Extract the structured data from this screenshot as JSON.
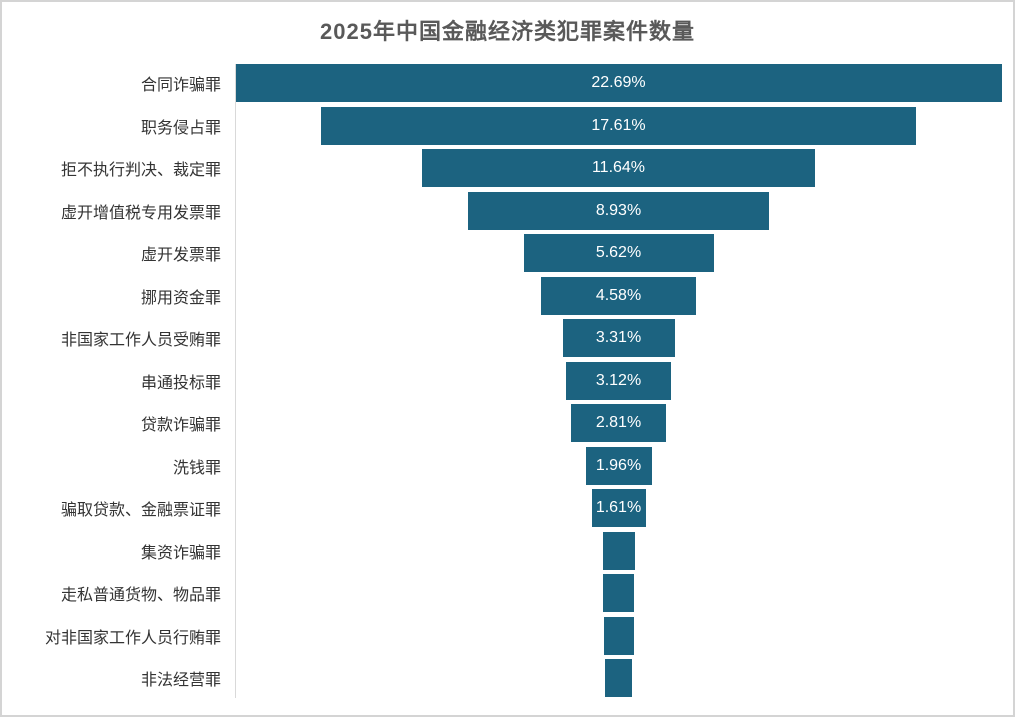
{
  "title": "2025年中国金融经济类犯罪案件数量",
  "colors": {
    "bar": "#1c6380",
    "title_text": "#595959",
    "label_text": "#333333",
    "axis_line": "#d9d9d9",
    "value_text": "#ffffff",
    "frame_border": "#d4d4d4"
  },
  "chart_data": {
    "type": "bar",
    "variant": "horizontal-centered-funnel",
    "title": "2025年中国金融经济类犯罪案件数量",
    "unit": "%",
    "legend": "none",
    "grid": "off",
    "xlim": [
      0,
      22.69
    ],
    "categories": [
      "合同诈骗罪",
      "职务侵占罪",
      "拒不执行判决、裁定罪",
      "虚开增值税专用发票罪",
      "虚开发票罪",
      "挪用资金罪",
      "非国家工作人员受贿罪",
      "串通投标罪",
      "贷款诈骗罪",
      "洗钱罪",
      "骗取贷款、金融票证罪",
      "集资诈骗罪",
      "走私普通货物、物品罪",
      "对非国家工作人员行贿罪",
      "非法经营罪"
    ],
    "values": [
      22.69,
      17.61,
      11.64,
      8.93,
      5.62,
      4.58,
      3.31,
      3.12,
      2.81,
      1.96,
      1.61,
      0.95,
      0.92,
      0.88,
      0.79
    ],
    "value_labels": [
      "22.69%",
      "17.61%",
      "11.64%",
      "8.93%",
      "5.62%",
      "4.58%",
      "3.31%",
      "3.12%",
      "2.81%",
      "1.96%",
      "1.61%",
      "",
      "",
      "",
      ""
    ]
  }
}
